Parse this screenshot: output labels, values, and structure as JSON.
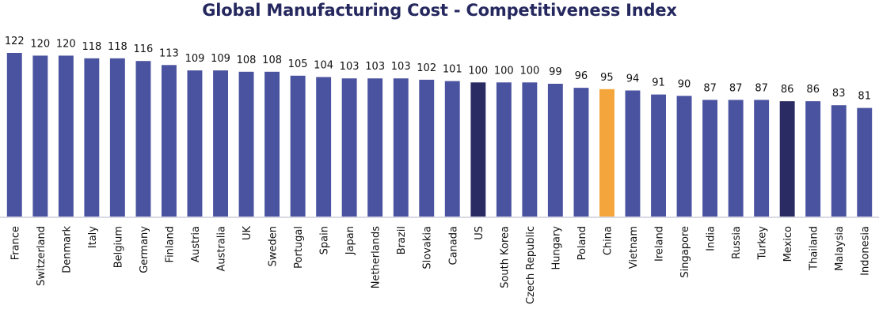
{
  "chart_data": {
    "type": "bar",
    "title": "Global Manufacturing Cost - Competitiveness Index",
    "xlabel": "",
    "ylabel": "",
    "ylim": [
      0,
      122
    ],
    "grid": false,
    "legend": "none",
    "data_labels": true,
    "categories": [
      "France",
      "Switzerland",
      "Denmark",
      "Italy",
      "Belgium",
      "Germany",
      "Finland",
      "Austria",
      "Australia",
      "UK",
      "Sweden",
      "Portugal",
      "Spain",
      "Japan",
      "Netherlands",
      "Brazil",
      "Slovakia",
      "Canada",
      "US",
      "South Korea",
      "Czech Republic",
      "Hungary",
      "Poland",
      "China",
      "Vietnam",
      "Ireland",
      "Singapore",
      "India",
      "Russia",
      "Turkey",
      "Mexico",
      "Thailand",
      "Malaysia",
      "Indonesia"
    ],
    "values": [
      122,
      120,
      120,
      118,
      118,
      116,
      113,
      109,
      109,
      108,
      108,
      105,
      104,
      103,
      103,
      103,
      102,
      101,
      100,
      100,
      100,
      99,
      96,
      95,
      94,
      91,
      90,
      87,
      87,
      87,
      86,
      86,
      83,
      81
    ],
    "colors": {
      "default": "#4A53A0",
      "highlight_dark": "#2B2B63",
      "highlight_china": "#F4A53B",
      "axis": "#d9d9e3"
    },
    "highlights": {
      "US": "highlight_dark",
      "Mexico": "highlight_dark",
      "China": "highlight_china"
    }
  }
}
